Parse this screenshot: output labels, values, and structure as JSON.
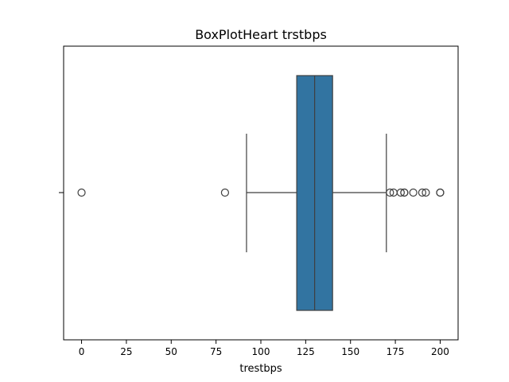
{
  "chart_data": {
    "type": "boxplot",
    "title": "BoxPlotHeart trstbps",
    "xlabel": "trestbps",
    "ylabel": "",
    "orientation": "horizontal",
    "xlim": [
      -10,
      210
    ],
    "xticks": [
      0,
      25,
      50,
      75,
      100,
      125,
      150,
      175,
      200
    ],
    "grid": false,
    "box": {
      "q1": 120,
      "median": 130,
      "q3": 140,
      "whisker_low": 92,
      "whisker_high": 170,
      "color": "#3274a1"
    },
    "outliers": [
      0,
      80,
      172,
      174,
      178,
      180,
      180,
      185,
      190,
      192,
      200,
      200
    ]
  }
}
